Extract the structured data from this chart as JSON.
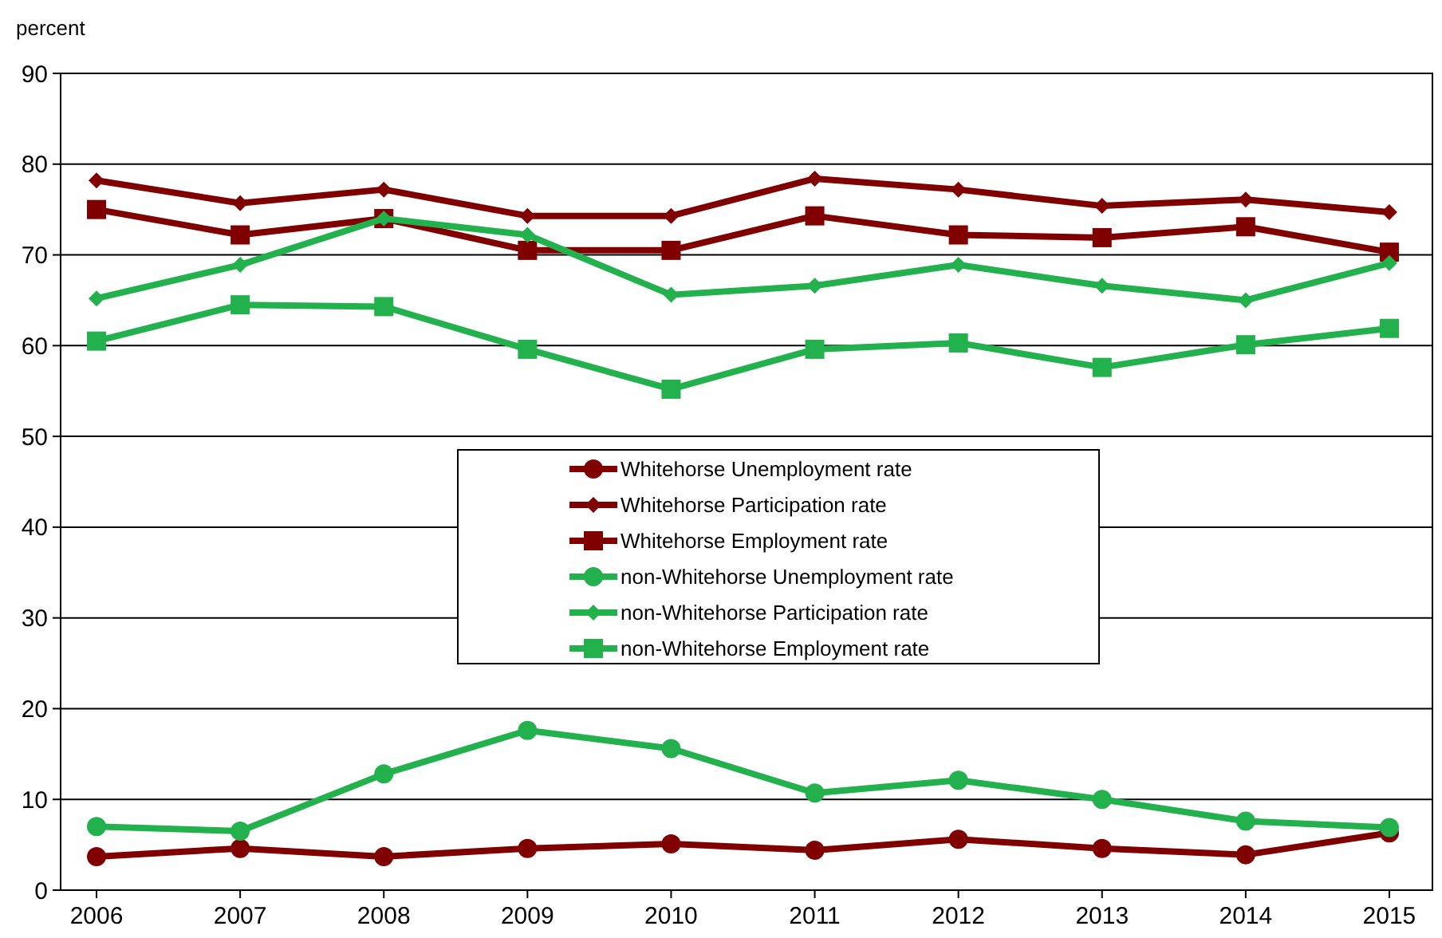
{
  "chart_data": {
    "type": "line",
    "ylabel": "percent",
    "x": [
      2006,
      2007,
      2008,
      2009,
      2010,
      2011,
      2012,
      2013,
      2014,
      2015
    ],
    "xlim": [
      2005.75,
      2015.3
    ],
    "xticks": [
      2006,
      2007,
      2008,
      2009,
      2010,
      2011,
      2012,
      2013,
      2014,
      2015
    ],
    "ylim": [
      0,
      90
    ],
    "yticks": [
      0,
      10,
      20,
      30,
      40,
      50,
      60,
      70,
      80,
      90
    ],
    "grid": "y",
    "legend": "center",
    "line_style": "solid",
    "series": [
      {
        "name": "Whitehorse Unemployment rate",
        "color": "#800000",
        "marker": "circle",
        "values": [
          3.7,
          4.6,
          3.7,
          4.6,
          5.1,
          4.4,
          5.6,
          4.6,
          3.9,
          6.3
        ]
      },
      {
        "name": "Whitehorse Participation rate",
        "color": "#800000",
        "marker": "diamond",
        "values": [
          78.2,
          75.7,
          77.2,
          74.3,
          74.3,
          78.4,
          77.2,
          75.4,
          76.1,
          74.7
        ]
      },
      {
        "name": "Whitehorse Employment rate",
        "color": "#800000",
        "marker": "square",
        "values": [
          75.0,
          72.2,
          74.0,
          70.5,
          70.5,
          74.3,
          72.2,
          71.9,
          73.1,
          70.3
        ]
      },
      {
        "name": "non-Whitehorse Unemployment rate",
        "color": "#22b14c",
        "marker": "circle",
        "values": [
          7.0,
          6.5,
          12.8,
          17.6,
          15.6,
          10.7,
          12.1,
          10.0,
          7.6,
          6.9
        ]
      },
      {
        "name": "non-Whitehorse Participation rate",
        "color": "#22b14c",
        "marker": "diamond",
        "values": [
          65.2,
          68.9,
          74.0,
          72.2,
          65.6,
          66.6,
          68.9,
          66.6,
          65.0,
          69.1
        ]
      },
      {
        "name": "non-Whitehorse Employment rate",
        "color": "#22b14c",
        "marker": "square",
        "values": [
          60.5,
          64.5,
          64.3,
          59.6,
          55.2,
          59.6,
          60.3,
          57.6,
          60.1,
          61.9
        ]
      }
    ]
  }
}
